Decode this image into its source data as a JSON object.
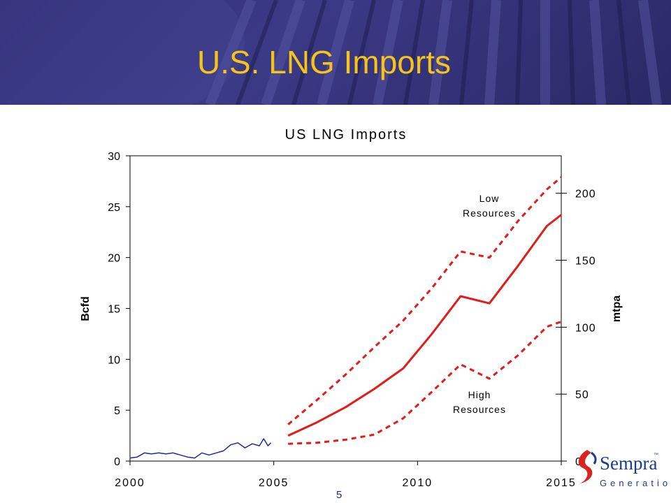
{
  "slide": {
    "title": "U.S. LNG Imports",
    "page_number": "5",
    "logo": {
      "name": "Sempra",
      "tm": "™",
      "subtitle": "Generation"
    }
  },
  "colors": {
    "title": "#f6c31a",
    "banner": "#2f2e74",
    "historical": "#1f2a9e",
    "forecast": "#e21b1b"
  },
  "chart_data": {
    "type": "line",
    "title": "US LNG Imports",
    "ylabel": "Bcfd",
    "y2label": "mtpa",
    "xlim": [
      2000,
      2015
    ],
    "ylim": [
      0,
      30
    ],
    "y2lim": [
      0,
      228
    ],
    "xticks": [
      2000,
      2005,
      2010,
      2015
    ],
    "yticks": [
      0,
      5,
      10,
      15,
      20,
      25,
      30
    ],
    "y2ticks": [
      0,
      50,
      100,
      150,
      200
    ],
    "grid": false,
    "series": [
      {
        "style": "solid",
        "color": "#1f2a9e",
        "x": [
          2000,
          2000.25,
          2000.5,
          2000.75,
          2001,
          2001.25,
          2001.5,
          2001.75,
          2002,
          2002.25,
          2002.5,
          2002.75,
          2003,
          2003.25,
          2003.5,
          2003.75,
          2004,
          2004.25,
          2004.5,
          2004.65,
          2004.8,
          2004.9
        ],
        "y": [
          0.3,
          0.4,
          0.8,
          0.7,
          0.8,
          0.7,
          0.8,
          0.6,
          0.4,
          0.3,
          0.8,
          0.6,
          0.8,
          1.0,
          1.6,
          1.8,
          1.3,
          1.7,
          1.5,
          2.2,
          1.5,
          1.8
        ]
      },
      {
        "style": "solid",
        "color": "#e21b1b",
        "x": [
          2005.5,
          2006.5,
          2007.5,
          2008.5,
          2009.5,
          2010.5,
          2011.5,
          2012.5,
          2013.5,
          2014.5,
          2015
        ],
        "y": [
          2.5,
          3.8,
          5.3,
          7.1,
          9.1,
          12.5,
          16.2,
          15.5,
          19.2,
          23.1,
          24.2
        ]
      },
      {
        "style": "dashed",
        "color": "#e21b1b",
        "x": [
          2005.5,
          2006.5,
          2007.5,
          2008.5,
          2009.5,
          2010.5,
          2011.5,
          2012.5,
          2013.5,
          2014.5,
          2015
        ],
        "y": [
          3.6,
          6.0,
          8.5,
          11.2,
          13.8,
          17.0,
          20.6,
          20.0,
          23.6,
          26.7,
          27.9
        ]
      },
      {
        "style": "dashed",
        "color": "#e21b1b",
        "x": [
          2005.5,
          2006.5,
          2007.5,
          2008.5,
          2009.5,
          2010.5,
          2011.5,
          2012.5,
          2013.5,
          2014.5,
          2015
        ],
        "y": [
          1.7,
          1.8,
          2.1,
          2.6,
          4.2,
          6.8,
          9.5,
          8.1,
          10.4,
          13.2,
          13.7
        ]
      }
    ],
    "annotations": [
      {
        "lines": [
          "Low",
          "Resources"
        ]
      },
      {
        "lines": [
          "High",
          "Resources"
        ]
      }
    ]
  }
}
